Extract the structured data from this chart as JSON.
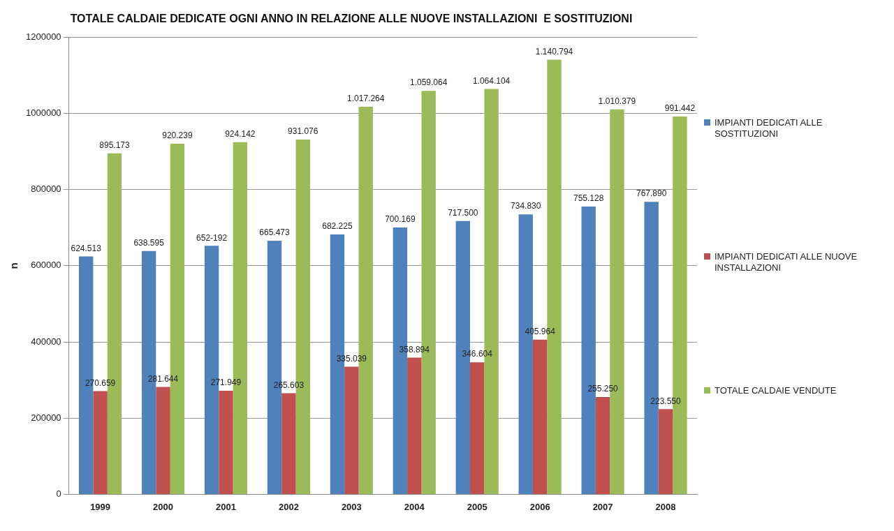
{
  "chart_data": {
    "type": "bar",
    "title": "TOTALE CALDAIE DEDICATE OGNI ANNO IN RELAZIONE ALLE NUOVE INSTALLAZIONI  E SOSTITUZIONI",
    "ylabel": "n",
    "categories": [
      "1999",
      "2000",
      "2001",
      "2002",
      "2003",
      "2004",
      "2005",
      "2006",
      "2007",
      "2008"
    ],
    "series": [
      {
        "name": "IMPIANTI DEDICATI ALLE SOSTITUZIONI",
        "color": "#4f81bd",
        "values": [
          624513,
          638595,
          652192,
          665473,
          682225,
          700169,
          717500,
          734830,
          755128,
          767890
        ],
        "value_labels": [
          "624.513",
          "638.595",
          "652-192",
          "665.473",
          "682.225",
          "700.169",
          "717.500",
          "734.830",
          "755.128",
          "767.890"
        ]
      },
      {
        "name": "IMPIANTI DEDICATI ALLE NUOVE INSTALLAZIONI",
        "color": "#c0504d",
        "values": [
          270659,
          281644,
          271949,
          265603,
          335039,
          358894,
          346604,
          405964,
          255250,
          223550
        ],
        "value_labels": [
          "270.659",
          "281.644",
          "271.949",
          "265.603",
          "335.039",
          "358.894",
          "346.604",
          "405.964",
          "255.250",
          "223.550"
        ]
      },
      {
        "name": "TOTALE CALDAIE VENDUTE",
        "color": "#9bbb59",
        "values": [
          895173,
          920239,
          924142,
          931076,
          1017264,
          1059064,
          1064104,
          1140794,
          1010379,
          991442
        ],
        "value_labels": [
          "895.173",
          "920.239",
          "924.142",
          "931.076",
          "1.017.264",
          "1.059.064",
          "1.064.104",
          "1.140.794",
          "1.010.379",
          "991.442"
        ]
      }
    ],
    "ylim": [
      0,
      1200000
    ],
    "yticks": [
      0,
      200000,
      400000,
      600000,
      800000,
      1000000,
      1200000
    ],
    "grid": "y",
    "legend": "right"
  }
}
